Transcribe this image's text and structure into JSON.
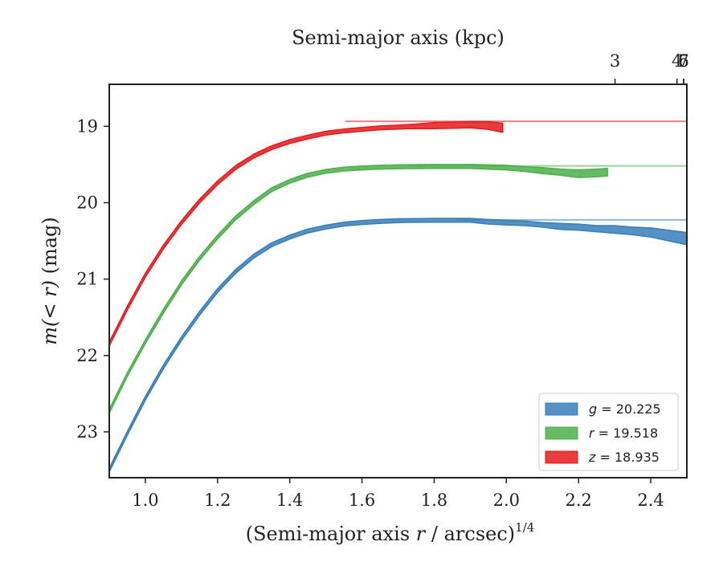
{
  "chart_data": {
    "type": "area",
    "xlabel": "(Semi-major axis r / arcsec)^(1/4)",
    "xlabel_parts": {
      "pre": "(Semi-major axis ",
      "var": "r",
      "post": " / arcsec)",
      "sup": "1/4"
    },
    "ylabel": "m(< r) (mag)",
    "ylabel_parts": {
      "var": "m(< r)",
      "post": " (mag)"
    },
    "top_xlabel": "Semi-major axis (kpc)",
    "xlim": [
      0.9,
      2.5
    ],
    "ylim": [
      23.6,
      18.45
    ],
    "y_inverted": true,
    "x_ticks": [
      1.0,
      1.2,
      1.4,
      1.6,
      1.8,
      2.0,
      2.2,
      2.4
    ],
    "x_tick_labels": [
      "1.0",
      "1.2",
      "1.4",
      "1.6",
      "1.8",
      "2.0",
      "2.2",
      "2.4"
    ],
    "y_ticks": [
      19,
      20,
      21,
      22,
      23
    ],
    "y_tick_labels": [
      "19",
      "20",
      "21",
      "22",
      "23"
    ],
    "top_ticks_kpc": [
      3,
      4,
      5,
      6,
      7
    ],
    "top_tick_labels": [
      "3",
      "4",
      "5",
      "6",
      "7"
    ],
    "top_axis_conversion": {
      "kpc_per_arcsec": 0.107
    },
    "legend_position": "lower-right",
    "grid": false,
    "series": [
      {
        "name": "g = 20.225",
        "band": "g",
        "legend_value": "20.225",
        "color": "#377eb8",
        "asymptote": 20.225,
        "x": [
          0.9,
          0.95,
          1.0,
          1.05,
          1.1,
          1.15,
          1.2,
          1.25,
          1.3,
          1.35,
          1.4,
          1.45,
          1.5,
          1.55,
          1.6,
          1.65,
          1.7,
          1.8,
          1.9,
          1.95,
          2.0,
          2.05,
          2.1,
          2.15,
          2.2,
          2.25,
          2.3,
          2.35,
          2.4,
          2.45,
          2.5
        ],
        "y": [
          23.5,
          23.02,
          22.56,
          22.15,
          21.78,
          21.45,
          21.15,
          20.9,
          20.7,
          20.55,
          20.45,
          20.37,
          20.32,
          20.28,
          20.26,
          20.245,
          20.235,
          20.23,
          20.23,
          20.25,
          20.26,
          20.27,
          20.29,
          20.31,
          20.32,
          20.34,
          20.35,
          20.37,
          20.39,
          20.43,
          20.47
        ],
        "err": [
          0.02,
          0.02,
          0.02,
          0.02,
          0.02,
          0.02,
          0.02,
          0.02,
          0.02,
          0.02,
          0.02,
          0.02,
          0.02,
          0.02,
          0.02,
          0.02,
          0.02,
          0.02,
          0.02,
          0.03,
          0.03,
          0.03,
          0.03,
          0.04,
          0.04,
          0.04,
          0.05,
          0.05,
          0.06,
          0.07,
          0.08
        ]
      },
      {
        "name": "r = 19.518",
        "band": "r",
        "legend_value": "19.518",
        "color": "#4daf4a",
        "asymptote": 19.518,
        "x": [
          0.9,
          0.95,
          1.0,
          1.05,
          1.1,
          1.15,
          1.2,
          1.25,
          1.3,
          1.35,
          1.4,
          1.45,
          1.5,
          1.55,
          1.6,
          1.65,
          1.7,
          1.8,
          1.9,
          2.0,
          2.05,
          2.1,
          2.15,
          2.2,
          2.25,
          2.28
        ],
        "y": [
          22.73,
          22.25,
          21.82,
          21.42,
          21.05,
          20.73,
          20.45,
          20.2,
          20.0,
          19.83,
          19.72,
          19.64,
          19.59,
          19.56,
          19.545,
          19.535,
          19.53,
          19.525,
          19.525,
          19.54,
          19.56,
          19.58,
          19.6,
          19.62,
          19.61,
          19.6
        ],
        "err": [
          0.02,
          0.02,
          0.02,
          0.02,
          0.02,
          0.02,
          0.02,
          0.02,
          0.02,
          0.02,
          0.02,
          0.02,
          0.02,
          0.02,
          0.02,
          0.02,
          0.02,
          0.02,
          0.02,
          0.03,
          0.03,
          0.04,
          0.04,
          0.05,
          0.05,
          0.05
        ]
      },
      {
        "name": "z = 18.935",
        "band": "z",
        "legend_value": "18.935",
        "color": "#e41a1c",
        "asymptote": 18.935,
        "x": [
          0.9,
          0.95,
          1.0,
          1.05,
          1.1,
          1.15,
          1.2,
          1.25,
          1.3,
          1.35,
          1.4,
          1.45,
          1.5,
          1.55,
          1.6,
          1.65,
          1.7,
          1.75,
          1.8,
          1.85,
          1.9,
          1.95,
          1.99
        ],
        "y": [
          21.85,
          21.38,
          20.95,
          20.58,
          20.26,
          19.98,
          19.74,
          19.54,
          19.39,
          19.28,
          19.2,
          19.14,
          19.09,
          19.06,
          19.04,
          19.02,
          19.01,
          19.0,
          18.99,
          18.985,
          18.98,
          18.99,
          19.02
        ],
        "err": [
          0.02,
          0.02,
          0.02,
          0.02,
          0.02,
          0.02,
          0.02,
          0.02,
          0.02,
          0.02,
          0.02,
          0.02,
          0.02,
          0.02,
          0.02,
          0.02,
          0.02,
          0.03,
          0.04,
          0.04,
          0.04,
          0.05,
          0.06
        ]
      }
    ]
  }
}
